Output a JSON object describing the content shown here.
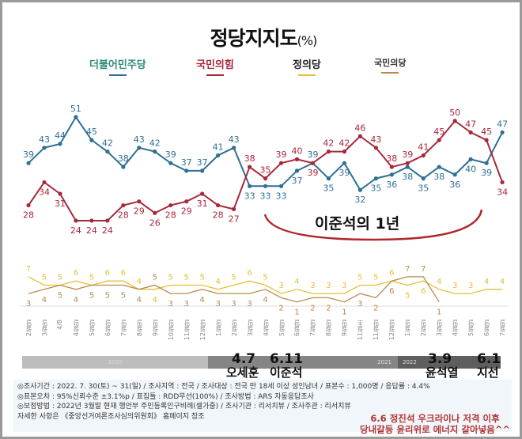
{
  "title": "정당지지도",
  "title_unit": "(%)",
  "legend": [
    {
      "name": "더불어민주당",
      "color": "#2f6f95"
    },
    {
      "name": "국민의힘",
      "color": "#a8283a"
    },
    {
      "name": "정의당",
      "color": "#e3c13a"
    },
    {
      "name": "국민의당",
      "color": "#b98a4e"
    }
  ],
  "chart_data": [
    {
      "type": "line",
      "categories": [
        "2월말",
        "3월말",
        "4/8",
        "4월말",
        "5월말",
        "6월말",
        "7월말",
        "8월말",
        "9월말",
        "10월말",
        "11월말",
        "12월말",
        "1월말",
        "2월말",
        "3월말",
        "4월말",
        "5월말",
        "6월말",
        "7월말",
        "8월말",
        "9월말",
        "11월초",
        "11월말",
        "12월말",
        "1월말",
        "2월말",
        "3월말",
        "4월말",
        "5월말",
        "6월말",
        "7월말"
      ],
      "series": [
        {
          "name": "더불어민주당",
          "values": [
            39,
            43,
            44,
            51,
            45,
            42,
            38,
            43,
            42,
            39,
            37,
            37,
            41,
            43,
            33,
            33,
            33,
            37,
            39,
            35,
            39,
            32,
            35,
            36,
            38,
            35,
            38,
            36,
            40,
            39,
            47
          ]
        },
        {
          "name": "국민의힘",
          "values": [
            28,
            34,
            31,
            24,
            24,
            24,
            28,
            29,
            26,
            28,
            29,
            31,
            28,
            27,
            38,
            35,
            39,
            40,
            39,
            42,
            42,
            46,
            43,
            38,
            39,
            41,
            45,
            50,
            47,
            45,
            34
          ]
        }
      ]
    },
    {
      "type": "line",
      "series": [
        {
          "name": "정의당",
          "values": [
            7,
            5,
            5,
            6,
            5,
            6,
            6,
            4,
            4,
            5,
            5,
            5,
            4,
            5,
            6,
            5,
            3,
            4,
            3,
            3,
            3,
            5,
            5,
            6,
            5,
            6,
            4,
            3,
            3,
            4,
            4
          ]
        },
        {
          "name": "국민의당",
          "values": [
            3,
            4,
            5,
            4,
            5,
            5,
            5,
            4,
            5,
            3,
            3,
            4,
            3,
            3,
            3,
            4,
            2,
            1,
            2,
            2,
            1,
            3,
            2,
            6,
            7,
            7,
            1,
            null,
            null,
            null,
            null
          ]
        }
      ]
    }
  ],
  "timeline": {
    "years": [
      "2020",
      "2021",
      "2022"
    ],
    "events": [
      {
        "date": "4.7",
        "name": "오세훈"
      },
      {
        "date": "6.11",
        "name": "이준석"
      },
      {
        "date": "3.9",
        "name": "윤석열"
      },
      {
        "date": "6.1",
        "name": "지선"
      }
    ]
  },
  "annotation": "이준석의 1년",
  "note": [
    "6.6 정진석 우크라이나 저격 이후",
    "당내갈등 윤리위로 에너지 갈아넣음^^"
  ],
  "footer": [
    "◎조사기간 : 2022. 7. 30(토) ~ 31(일) / 조사지역 : 전국 / 조사대상 : 전국 만 18세 이상 성인남녀 / 표본수 : 1,000명 / 응답률 : 4.4%",
    "◎표본오차 : 95%신뢰수준 ±3.1%p / 표집틀 : RDD무선(100%) / 조사방법 : ARS 자동응답조사",
    "◎보정방법 : 2022년 3월말 현재 행안부 주민등록인구비례(셀가중) / 조사기관 : 리서치뷰 / 조사주관 : 리서치뷰",
    "자세한 사항은 《중앙선거여론조사심의위원회》 홈페이지 참조"
  ]
}
